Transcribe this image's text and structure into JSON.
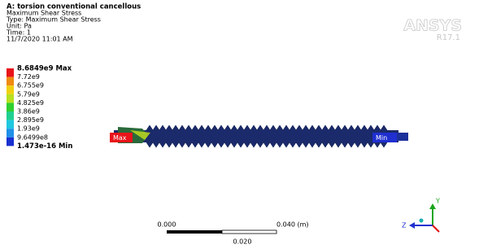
{
  "header": {
    "title": "A: torsion conventional cancellous",
    "lines": [
      "Maximum Shear Stress",
      "Type: Maximum Shear Stress",
      "Unit: Pa",
      "Time: 1",
      "11/7/2020 11:01 AM"
    ]
  },
  "legend": {
    "labels": [
      "8.6849e9 Max",
      "7.72e9",
      "6.755e9",
      "5.79e9",
      "4.825e9",
      "3.86e9",
      "2.895e9",
      "1.93e9",
      "9.6499e8",
      "1.473e-16 Min"
    ]
  },
  "logo": {
    "name": "ANSYS",
    "version": "R17.1"
  },
  "model": {
    "max_label": "Max",
    "min_label": "Min"
  },
  "scale_bar": {
    "left": "0.000",
    "right": "0.040 (m)",
    "middle": "0.020"
  },
  "triad": {
    "y": "Y",
    "z": "Z"
  }
}
